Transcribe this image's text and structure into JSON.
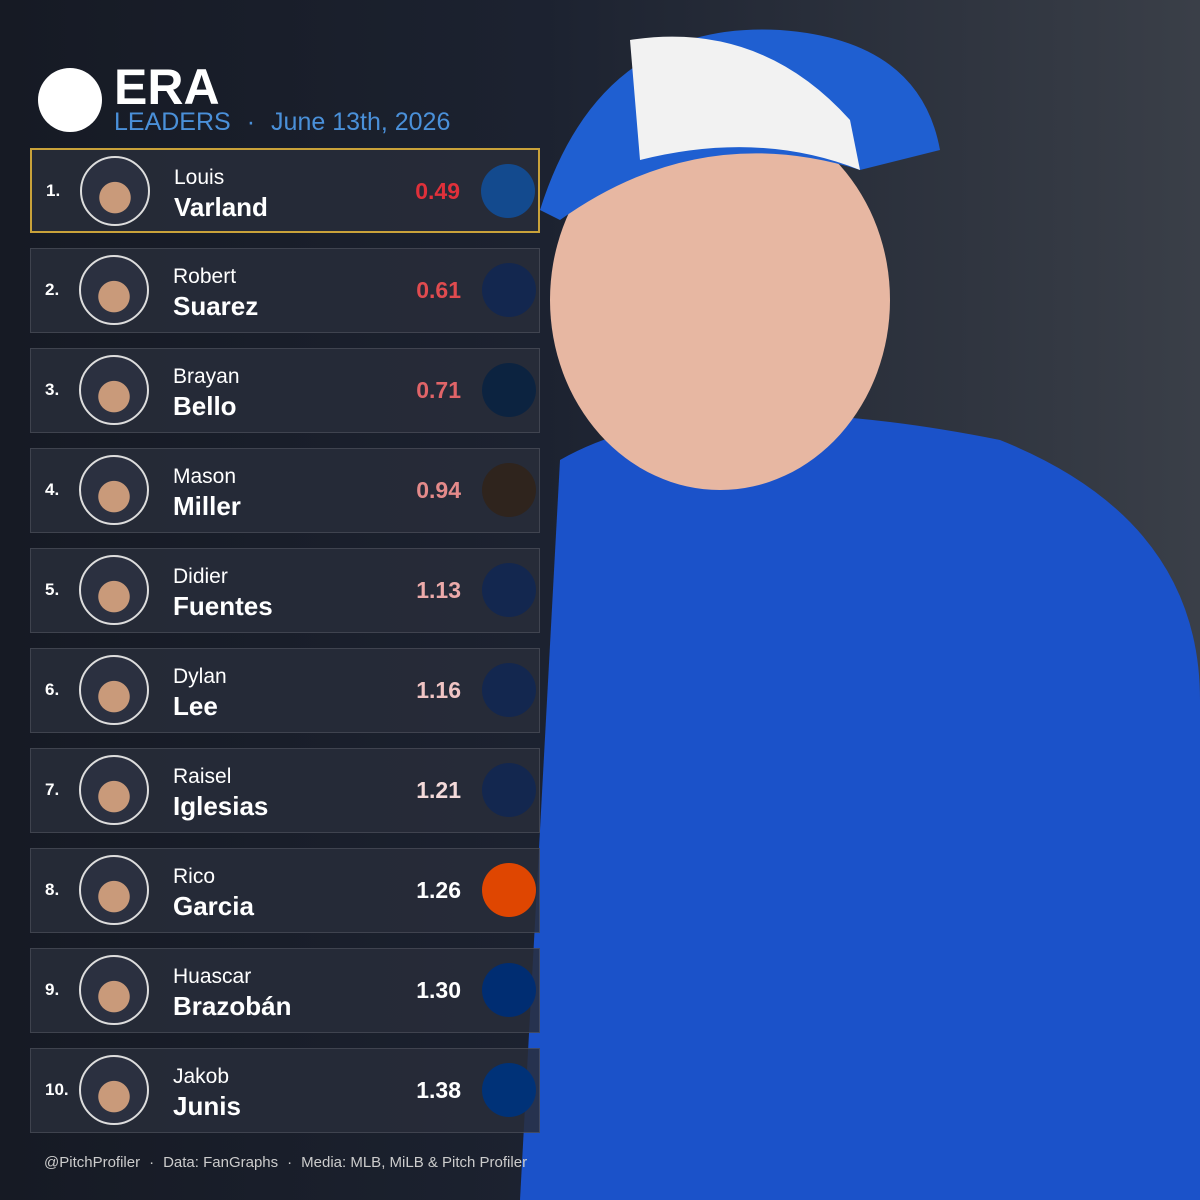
{
  "header": {
    "title": "ERA",
    "subtitle": "LEADERS",
    "separator": "·",
    "date": "June 13th, 2026"
  },
  "rows": [
    {
      "rank": "1.",
      "first": "Louis",
      "last": "Varland",
      "era": "0.49",
      "logo_color": "#134a8e"
    },
    {
      "rank": "2.",
      "first": "Robert",
      "last": "Suarez",
      "era": "0.61",
      "logo_color": "#13274f"
    },
    {
      "rank": "3.",
      "first": "Brayan",
      "last": "Bello",
      "era": "0.71",
      "logo_color": "#0c2340"
    },
    {
      "rank": "4.",
      "first": "Mason",
      "last": "Miller",
      "era": "0.94",
      "logo_color": "#2f241d"
    },
    {
      "rank": "5.",
      "first": "Didier",
      "last": "Fuentes",
      "era": "1.13",
      "logo_color": "#13274f"
    },
    {
      "rank": "6.",
      "first": "Dylan",
      "last": "Lee",
      "era": "1.16",
      "logo_color": "#13274f"
    },
    {
      "rank": "7.",
      "first": "Raisel",
      "last": "Iglesias",
      "era": "1.21",
      "logo_color": "#13274f"
    },
    {
      "rank": "8.",
      "first": "Rico",
      "last": "Garcia",
      "era": "1.26",
      "logo_color": "#df4601"
    },
    {
      "rank": "9.",
      "first": "Huascar",
      "last": "Brazobán",
      "era": "1.30",
      "logo_color": "#002d72"
    },
    {
      "rank": "10.",
      "first": "Jakob",
      "last": "Junis",
      "era": "1.38",
      "logo_color": "#003278"
    }
  ],
  "footer": {
    "separator": "·",
    "items": [
      "@PitchProfiler",
      "Data: FanGraphs",
      "Media: MLB, MiLB & Pitch Profiler"
    ]
  }
}
